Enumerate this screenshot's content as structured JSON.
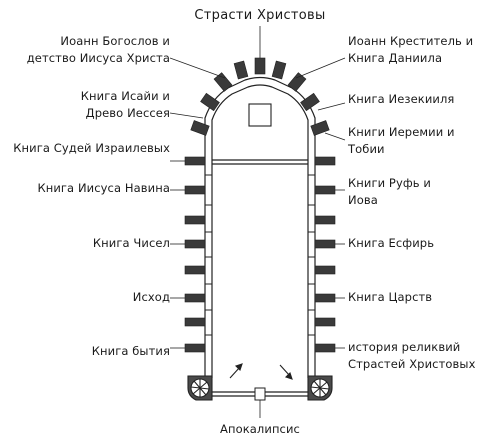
{
  "title": "Страсти Христовы",
  "bottom_label": "Апокалипсис",
  "left_labels": {
    "john_evangelist": [
      "Иоанн Богослов и",
      "детство Иисуса Христа"
    ],
    "isaiah": [
      "Книга Исайи и",
      "Древо Иессея"
    ],
    "judges": [
      "Книга Судей Израилевых"
    ],
    "joshua": [
      "Книга Иисуса Навина"
    ],
    "numbers": [
      "Книга Чисел"
    ],
    "exodus": [
      "Исход"
    ],
    "genesis": [
      "Книга бытия"
    ]
  },
  "right_labels": {
    "john_baptist": [
      "Иоанн Креститель и",
      "Книга Даниила"
    ],
    "ezekiel": [
      "Книга Иезекииля"
    ],
    "jeremiah": [
      "Книги Иеремии и",
      "Тобии"
    ],
    "ruth": [
      "Книги Руфь и",
      "Иова"
    ],
    "esther": [
      "Книга Есфирь"
    ],
    "kings": [
      "Книга Царств"
    ],
    "relics": [
      "история реликвий",
      "Страстей Христовых"
    ]
  }
}
